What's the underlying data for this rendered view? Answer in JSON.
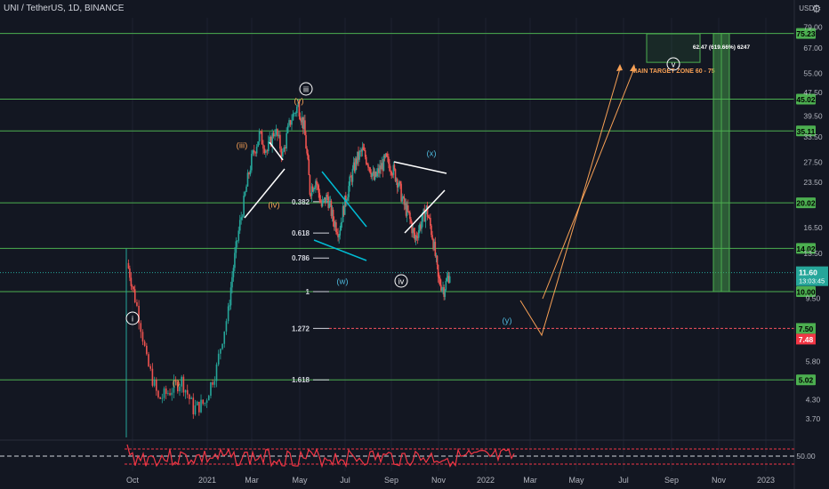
{
  "header": {
    "symbol": "UNI / TetherUS, 1D, BINANCE",
    "currency": "USDT"
  },
  "chart_data": {
    "type": "line",
    "title": "UNI / TetherUS, 1D, BINANCE",
    "yscale": "log",
    "ylim": [
      3.2,
      85
    ],
    "x_ticks": [
      "Oct",
      "2021",
      "Mar",
      "May",
      "Jul",
      "Sep",
      "Nov",
      "2022",
      "Mar",
      "May",
      "Jul",
      "Sep",
      "Nov",
      "2023"
    ],
    "y_ticks": [
      "79.00",
      "67.00",
      "55.00",
      "47.50",
      "39.50",
      "33.50",
      "27.50",
      "23.50",
      "16.50",
      "13.50",
      "9.50",
      "5.80",
      "4.30",
      "3.70"
    ],
    "horizontal_levels": [
      {
        "label": "75.23",
        "value": 75.23
      },
      {
        "label": "45.02",
        "value": 45.02
      },
      {
        "label": "35.11",
        "value": 35.11
      },
      {
        "label": "20.02",
        "value": 20.02
      },
      {
        "label": "14.02",
        "value": 14.02
      },
      {
        "label": "10.00",
        "value": 10.0
      },
      {
        "label": "5.02",
        "value": 5.02
      }
    ],
    "current_price": {
      "label": "11.60",
      "time": "13:03:45",
      "value": 11.6
    },
    "dashed_level": {
      "label": "7.50",
      "value": 7.5
    },
    "red_badge": {
      "label": "7.48",
      "value": 7.48
    },
    "fib_levels": [
      {
        "label": "0.382",
        "value": 20.2
      },
      {
        "label": "0.618",
        "value": 15.8
      },
      {
        "label": "0.786",
        "value": 13.0
      },
      {
        "label": "1",
        "value": 10.0
      },
      {
        "label": "1.272",
        "value": 7.5
      },
      {
        "label": "1.618",
        "value": 5.02
      }
    ],
    "wave_labels": [
      "i",
      "(i)",
      "(iii)",
      "(iv)",
      "(v)",
      "iii",
      "(w)",
      "iv",
      "(x)",
      "(y)",
      "v"
    ],
    "target_zone": {
      "label": "MAIN TARGET ZONE 60 - 75",
      "low": 60,
      "high": 75
    },
    "measure_label": "62.47 (619.66%) 6247",
    "rsi_ticks": [
      "50.00"
    ],
    "price_series": [
      [
        0.0,
        12.5
      ],
      [
        0.02,
        9.5
      ],
      [
        0.05,
        5.8
      ],
      [
        0.08,
        4.3
      ],
      [
        0.11,
        4.6
      ],
      [
        0.14,
        5.0
      ],
      [
        0.17,
        4.0
      ],
      [
        0.2,
        4.2
      ],
      [
        0.23,
        5.5
      ],
      [
        0.26,
        8.5
      ],
      [
        0.28,
        14.0
      ],
      [
        0.3,
        20.0
      ],
      [
        0.32,
        28.0
      ],
      [
        0.34,
        34.0
      ],
      [
        0.36,
        30.0
      ],
      [
        0.38,
        35.5
      ],
      [
        0.4,
        29.0
      ],
      [
        0.42,
        38.0
      ],
      [
        0.44,
        43.0
      ],
      [
        0.455,
        36.0
      ],
      [
        0.47,
        22.0
      ],
      [
        0.485,
        24.0
      ],
      [
        0.5,
        19.5
      ],
      [
        0.515,
        21.0
      ],
      [
        0.53,
        17.5
      ],
      [
        0.545,
        16.0
      ],
      [
        0.56,
        20.0
      ],
      [
        0.575,
        24.0
      ],
      [
        0.59,
        28.0
      ],
      [
        0.605,
        30.0
      ],
      [
        0.62,
        27.5
      ],
      [
        0.635,
        24.0
      ],
      [
        0.65,
        26.0
      ],
      [
        0.665,
        28.0
      ],
      [
        0.68,
        26.5
      ],
      [
        0.695,
        24.0
      ],
      [
        0.71,
        20.0
      ],
      [
        0.725,
        18.0
      ],
      [
        0.74,
        15.0
      ],
      [
        0.755,
        17.0
      ],
      [
        0.77,
        19.0
      ],
      [
        0.785,
        15.5
      ],
      [
        0.8,
        11.0
      ],
      [
        0.815,
        10.2
      ],
      [
        0.83,
        11.6
      ]
    ]
  }
}
